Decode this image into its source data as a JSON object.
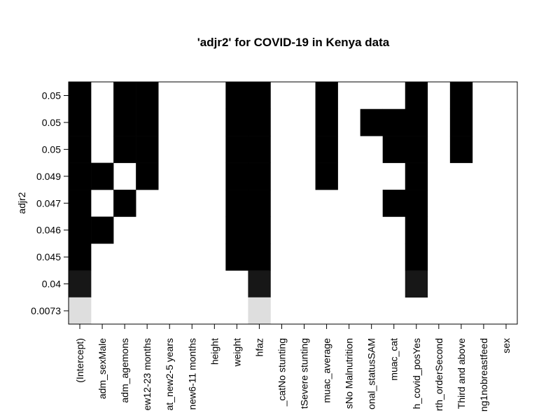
{
  "chart_data": {
    "type": "heatmap",
    "title": "'adjr2' for COVID-19 in Kenya data",
    "ylabel": "adjr2",
    "xlabel": "",
    "x_labels": [
      "(Intercept)",
      "adm_sexMale",
      "adm_agemons",
      "ew12-23 months",
      "at_new2-5 years",
      "new6-11 months",
      "height",
      "weight",
      "hfaz",
      "_catNo stunting",
      "tSevere stunting",
      "muac_average",
      "sNo Malnutrition",
      "onal_statusSAM",
      "muac_cat",
      "h_covid_posYes",
      "rth_orderSecond",
      "Third and above",
      "ng1nobreastfeed",
      "sex"
    ],
    "y_labels": [
      "0.05",
      "0.05",
      "0.05",
      "0.049",
      "0.047",
      "0.046",
      "0.045",
      "0.04",
      "0.0073"
    ],
    "row_values": [
      0.05,
      0.05,
      0.05,
      0.049,
      0.047,
      0.046,
      0.045,
      0.04,
      0.0073
    ],
    "row_colors": [
      "#000000",
      "#000000",
      "#000000",
      "#000000",
      "#000000",
      "#000000",
      "#000000",
      "#171717",
      "#dedede"
    ],
    "matrix": [
      [
        1,
        0,
        1,
        1,
        0,
        0,
        0,
        1,
        1,
        0,
        0,
        1,
        0,
        0,
        0,
        1,
        0,
        1,
        0,
        0
      ],
      [
        1,
        0,
        1,
        1,
        0,
        0,
        0,
        1,
        1,
        0,
        0,
        1,
        0,
        1,
        1,
        1,
        0,
        1,
        0,
        0
      ],
      [
        1,
        0,
        1,
        1,
        0,
        0,
        0,
        1,
        1,
        0,
        0,
        1,
        0,
        0,
        1,
        1,
        0,
        1,
        0,
        0
      ],
      [
        1,
        1,
        0,
        1,
        0,
        0,
        0,
        1,
        1,
        0,
        0,
        1,
        0,
        0,
        0,
        1,
        0,
        0,
        0,
        0
      ],
      [
        1,
        0,
        1,
        0,
        0,
        0,
        0,
        1,
        1,
        0,
        0,
        0,
        0,
        0,
        1,
        1,
        0,
        0,
        0,
        0
      ],
      [
        1,
        1,
        0,
        0,
        0,
        0,
        0,
        1,
        1,
        0,
        0,
        0,
        0,
        0,
        0,
        1,
        0,
        0,
        0,
        0
      ],
      [
        1,
        0,
        0,
        0,
        0,
        0,
        0,
        1,
        1,
        0,
        0,
        0,
        0,
        0,
        0,
        1,
        0,
        0,
        0,
        0
      ],
      [
        1,
        0,
        0,
        0,
        0,
        0,
        0,
        0,
        1,
        0,
        0,
        0,
        0,
        0,
        0,
        1,
        0,
        0,
        0,
        0
      ],
      [
        1,
        0,
        0,
        0,
        0,
        0,
        0,
        0,
        1,
        0,
        0,
        0,
        0,
        0,
        0,
        0,
        0,
        0,
        0,
        0
      ]
    ],
    "grid": false,
    "legend": "none"
  }
}
